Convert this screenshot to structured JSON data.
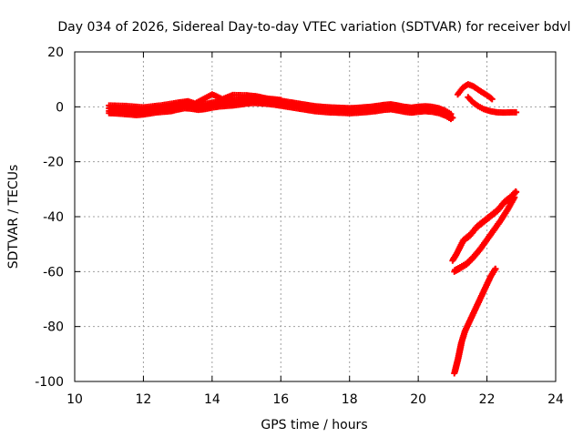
{
  "chart_data": {
    "type": "scatter",
    "title": "Day 034 of 2026, Sidereal Day-to-day VTEC variation (SDTVAR) for receiver bdvl",
    "xlabel": "GPS time / hours",
    "ylabel": "SDTVAR / TECUs",
    "xlim": [
      10,
      24
    ],
    "ylim": [
      -100,
      20
    ],
    "xticks": [
      10,
      12,
      14,
      16,
      18,
      20,
      22,
      24
    ],
    "yticks": [
      -100,
      -80,
      -60,
      -40,
      -20,
      0,
      20
    ],
    "grid": true,
    "marker": "plus",
    "color": "#ff0000",
    "series": [
      {
        "name": "main-band",
        "x": [
          11.0,
          11.2,
          11.4,
          11.6,
          11.8,
          12.0,
          12.2,
          12.4,
          12.6,
          12.8,
          13.0,
          13.2,
          13.4,
          13.6,
          13.8,
          14.0,
          14.2,
          14.4,
          14.6,
          14.8,
          15.0,
          15.2,
          15.4,
          15.6,
          15.8,
          16.0,
          16.2,
          16.4,
          16.6,
          16.8,
          17.0,
          17.2,
          17.4,
          17.6,
          17.8,
          18.0,
          18.2,
          18.4,
          18.6,
          18.8,
          19.0,
          19.2,
          19.4,
          19.6,
          19.8,
          20.0,
          20.2,
          20.4,
          20.6,
          20.8,
          21.0
        ],
        "y": [
          -1.5,
          -1.6,
          -1.8,
          -2.0,
          -2.2,
          -2.0,
          -1.6,
          -1.2,
          -1.0,
          -0.8,
          -0.2,
          0.3,
          0.1,
          -0.3,
          0.0,
          0.5,
          0.9,
          1.1,
          1.3,
          1.6,
          2.0,
          2.2,
          2.1,
          1.9,
          1.6,
          1.2,
          0.8,
          0.4,
          0.0,
          -0.4,
          -0.8,
          -1.0,
          -1.2,
          -1.3,
          -1.4,
          -1.5,
          -1.4,
          -1.2,
          -1.0,
          -0.7,
          -0.3,
          -0.1,
          -0.5,
          -1.0,
          -1.3,
          -1.0,
          -0.8,
          -1.0,
          -1.5,
          -2.5,
          -4.0
        ]
      },
      {
        "name": "main-band-upper",
        "x": [
          11.0,
          11.5,
          12.0,
          12.5,
          13.0,
          13.3,
          13.5,
          14.0,
          14.1,
          14.3,
          14.6,
          15.0,
          15.3,
          15.6,
          16.0
        ],
        "y": [
          0.5,
          0.3,
          -0.2,
          0.5,
          1.5,
          2.0,
          1.2,
          4.5,
          4.0,
          2.8,
          4.3,
          4.2,
          3.8,
          3.0,
          2.5
        ]
      },
      {
        "name": "arc-upper-1",
        "x": [
          21.15,
          21.3,
          21.45,
          21.6,
          21.75,
          21.9,
          22.05,
          22.15
        ],
        "y": [
          4.5,
          7.0,
          8.2,
          7.5,
          6.2,
          5.0,
          3.8,
          2.8
        ]
      },
      {
        "name": "arc-upper-2",
        "x": [
          21.45,
          21.6,
          21.75,
          21.9,
          22.1,
          22.3,
          22.5,
          22.7,
          22.85
        ],
        "y": [
          3.5,
          1.5,
          0.2,
          -0.8,
          -1.6,
          -2.0,
          -2.1,
          -2.0,
          -2.0
        ]
      },
      {
        "name": "line-upper",
        "x": [
          21.0,
          21.1,
          21.3,
          21.5,
          21.7,
          21.9,
          22.1,
          22.3,
          22.5,
          22.7,
          22.85
        ],
        "y": [
          -56,
          -54,
          -49,
          -47,
          -44,
          -42,
          -40,
          -38,
          -35,
          -33,
          -31
        ]
      },
      {
        "name": "line-middle",
        "x": [
          21.05,
          21.2,
          21.4,
          21.6,
          21.8,
          22.0,
          22.2,
          22.4,
          22.6,
          22.8
        ],
        "y": [
          -60,
          -59,
          -57.5,
          -55,
          -52,
          -48.5,
          -45,
          -41.5,
          -37.5,
          -33
        ]
      },
      {
        "name": "line-lower",
        "x": [
          21.05,
          21.15,
          21.25,
          21.35,
          21.5,
          21.65,
          21.8,
          21.95,
          22.1,
          22.25
        ],
        "y": [
          -97,
          -92,
          -86,
          -82,
          -78,
          -74,
          -70,
          -66,
          -62,
          -59
        ]
      }
    ]
  }
}
